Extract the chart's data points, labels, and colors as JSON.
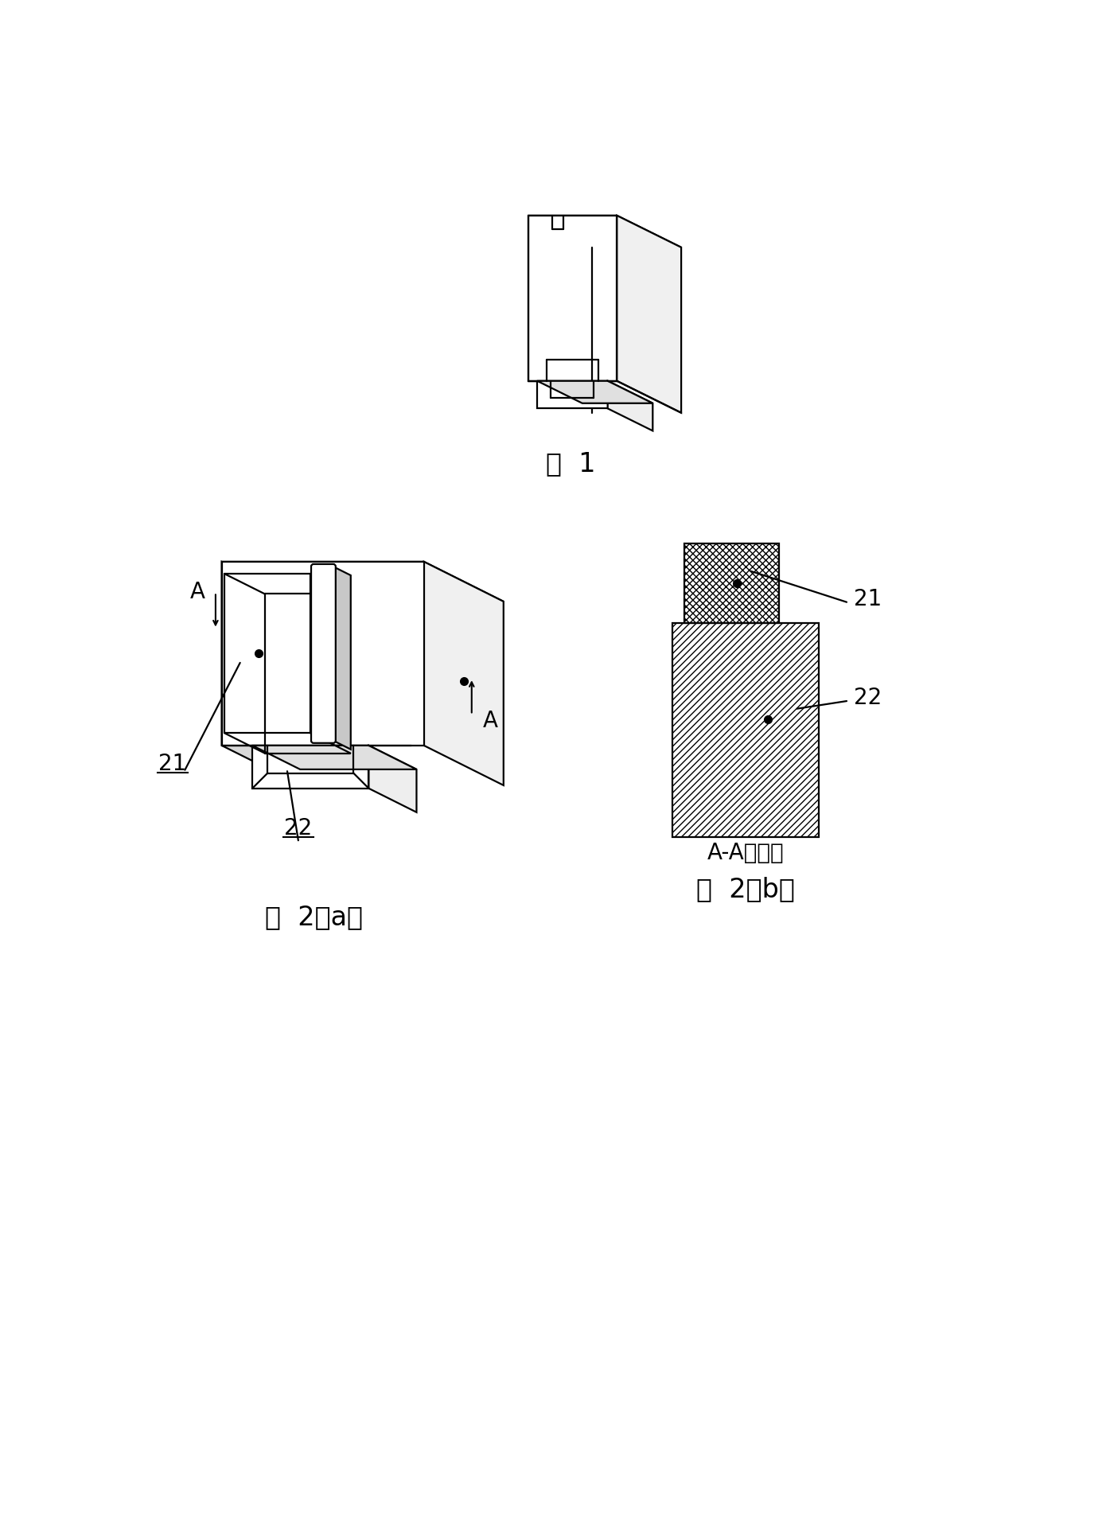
{
  "bg_color": "#ffffff",
  "line_color": "#000000",
  "line_width": 1.6,
  "fig1_label": "图  1",
  "fig2a_label": "图  2（a）",
  "fig2b_label": "图  2（b）",
  "fig2b_section_label": "A-A剖视图",
  "label_21": "21",
  "label_22": "22",
  "label_A": "A",
  "font_size_label": 24,
  "font_size_number": 20,
  "font_size_A": 20
}
